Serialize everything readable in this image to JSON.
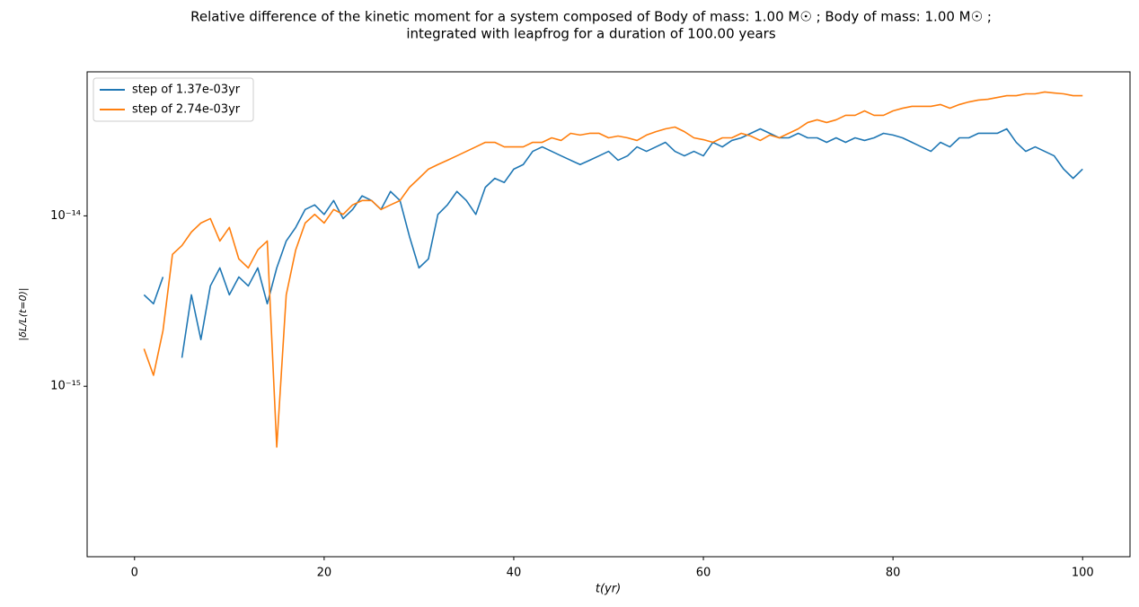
{
  "chart_data": {
    "type": "line",
    "title": [
      "Relative difference of the kinetic moment for a system composed of Body of mass: 1.00 M☉ ; Body of mass: 1.00 M☉ ;",
      "integrated with leapfrog for a duration of 100.00 years"
    ],
    "xlabel": "t(yr)",
    "ylabel": "|δL/L(t=0)|",
    "yscale": "log",
    "grid": false,
    "legend": "upper left",
    "xlim": [
      -5,
      105
    ],
    "ylim": [
      1e-16,
      7e-14
    ],
    "xticks": [
      0,
      20,
      40,
      60,
      80,
      100
    ],
    "yticks": [
      {
        "value": 1e-15,
        "label": "10⁻¹⁵"
      },
      {
        "value": 1e-14,
        "label": "10⁻¹⁴"
      }
    ],
    "x": [
      0,
      1,
      2,
      3,
      4,
      5,
      6,
      7,
      8,
      9,
      10,
      11,
      12,
      13,
      14,
      15,
      16,
      17,
      18,
      19,
      20,
      21,
      22,
      23,
      24,
      25,
      26,
      27,
      28,
      29,
      30,
      31,
      32,
      33,
      34,
      35,
      36,
      37,
      38,
      39,
      40,
      41,
      42,
      43,
      44,
      45,
      46,
      47,
      48,
      49,
      50,
      51,
      52,
      53,
      54,
      55,
      56,
      57,
      58,
      59,
      60,
      61,
      62,
      63,
      64,
      65,
      66,
      67,
      68,
      69,
      70,
      71,
      72,
      73,
      74,
      75,
      76,
      77,
      78,
      79,
      80,
      81,
      82,
      83,
      84,
      85,
      86,
      87,
      88,
      89,
      90,
      91,
      92,
      93,
      94,
      95,
      96,
      97,
      98,
      99,
      100
    ],
    "series": [
      {
        "name": "step of 1.37e-03yr",
        "color": "#1f77b4",
        "values": [
          null,
          3.44e-15,
          3.05e-15,
          4.38e-15,
          null,
          1.47e-15,
          3.44e-15,
          1.88e-15,
          3.88e-15,
          4.95e-15,
          3.44e-15,
          4.38e-15,
          3.88e-15,
          4.95e-15,
          3.05e-15,
          4.95e-15,
          7.12e-15,
          8.55e-15,
          1.09e-14,
          1.16e-14,
          1.02e-14,
          1.23e-14,
          9.64e-15,
          1.09e-14,
          1.31e-14,
          1.23e-14,
          1.09e-14,
          1.39e-14,
          1.23e-14,
          7.57e-15,
          4.95e-15,
          5.59e-15,
          1.02e-14,
          1.16e-14,
          1.39e-14,
          1.23e-14,
          1.02e-14,
          1.47e-14,
          1.66e-14,
          1.57e-14,
          1.88e-14,
          2e-14,
          2.39e-14,
          2.54e-14,
          2.39e-14,
          2.25e-14,
          2.12e-14,
          2e-14,
          2.12e-14,
          2.25e-14,
          2.39e-14,
          2.12e-14,
          2.25e-14,
          2.54e-14,
          2.39e-14,
          2.54e-14,
          2.7e-14,
          2.39e-14,
          2.25e-14,
          2.39e-14,
          2.25e-14,
          2.7e-14,
          2.54e-14,
          2.77e-14,
          2.87e-14,
          3.05e-14,
          3.24e-14,
          3.05e-14,
          2.87e-14,
          2.87e-14,
          3.05e-14,
          2.87e-14,
          2.87e-14,
          2.7e-14,
          2.87e-14,
          2.7e-14,
          2.87e-14,
          2.77e-14,
          2.87e-14,
          3.05e-14,
          2.98e-14,
          2.87e-14,
          2.7e-14,
          2.54e-14,
          2.39e-14,
          2.7e-14,
          2.54e-14,
          2.87e-14,
          2.87e-14,
          3.05e-14,
          3.05e-14,
          3.05e-14,
          3.24e-14,
          2.7e-14,
          2.39e-14,
          2.54e-14,
          2.39e-14,
          2.25e-14,
          1.88e-14,
          1.66e-14,
          1.88e-14
        ]
      },
      {
        "name": "step of 2.74e-03yr",
        "color": "#ff7f0e",
        "values": [
          null,
          1.66e-15,
          1.16e-15,
          2.12e-15,
          5.94e-15,
          6.7e-15,
          8.04e-15,
          9.08e-15,
          9.64e-15,
          7.12e-15,
          8.55e-15,
          5.59e-15,
          4.95e-15,
          6.31e-15,
          7.12e-15,
          4.4e-16,
          3.44e-15,
          6.31e-15,
          9.08e-15,
          1.02e-14,
          9.08e-15,
          1.09e-14,
          1.02e-14,
          1.16e-14,
          1.23e-14,
          1.23e-14,
          1.09e-14,
          1.16e-14,
          1.23e-14,
          1.47e-14,
          1.66e-14,
          1.88e-14,
          2e-14,
          2.12e-14,
          2.25e-14,
          2.39e-14,
          2.54e-14,
          2.7e-14,
          2.7e-14,
          2.54e-14,
          2.54e-14,
          2.54e-14,
          2.7e-14,
          2.7e-14,
          2.87e-14,
          2.77e-14,
          3.05e-14,
          2.98e-14,
          3.05e-14,
          3.05e-14,
          2.87e-14,
          2.94e-14,
          2.87e-14,
          2.77e-14,
          2.98e-14,
          3.12e-14,
          3.24e-14,
          3.32e-14,
          3.12e-14,
          2.87e-14,
          2.8e-14,
          2.7e-14,
          2.87e-14,
          2.87e-14,
          3.05e-14,
          2.94e-14,
          2.77e-14,
          2.98e-14,
          2.87e-14,
          3.05e-14,
          3.24e-14,
          3.53e-14,
          3.66e-14,
          3.53e-14,
          3.66e-14,
          3.89e-14,
          3.89e-14,
          4.13e-14,
          3.89e-14,
          3.89e-14,
          4.13e-14,
          4.28e-14,
          4.39e-14,
          4.39e-14,
          4.39e-14,
          4.5e-14,
          4.28e-14,
          4.5e-14,
          4.66e-14,
          4.78e-14,
          4.83e-14,
          4.95e-14,
          5.07e-14,
          5.07e-14,
          5.2e-14,
          5.2e-14,
          5.33e-14,
          5.26e-14,
          5.2e-14,
          5.07e-14,
          5.07e-14
        ]
      }
    ]
  }
}
